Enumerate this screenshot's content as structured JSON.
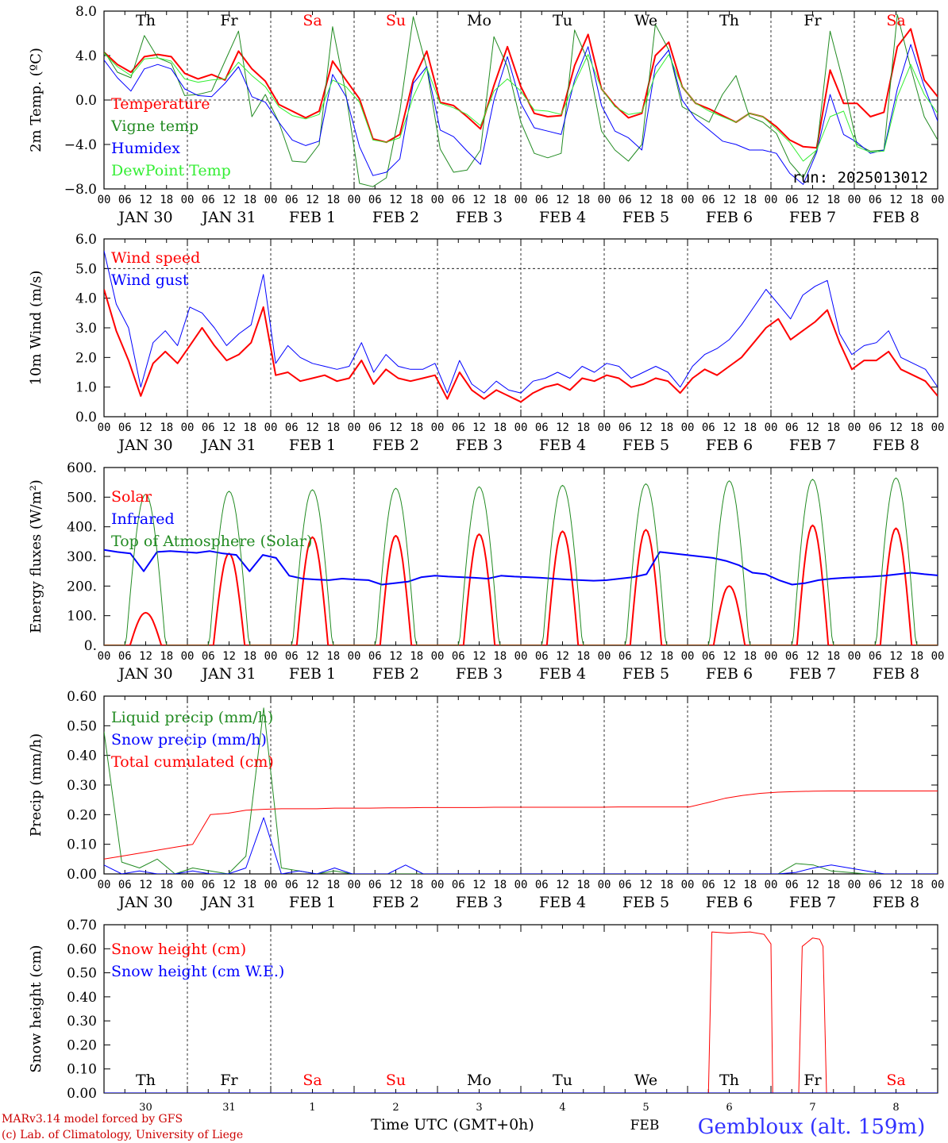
{
  "chart_data": [
    {
      "type": "line",
      "ylabel": "2m Temp. (ºC)",
      "ylim": [
        -8,
        8
      ],
      "ticks": [
        "8.0",
        "4.0",
        "0.0",
        "−4.0",
        "−8.0"
      ],
      "tick_values": [
        8,
        4,
        0,
        -4,
        -8
      ],
      "dashed_y": [
        0
      ],
      "day_labels": [
        "Th",
        "Fr",
        "Sa",
        "Su",
        "Mo",
        "Tu",
        "We",
        "Th",
        "Fr",
        "Sa"
      ],
      "run_label": "run: 2025013012",
      "series": [
        {
          "name": "Temperature",
          "color": "#ff0000",
          "width": 2,
          "values": [
            4.3,
            3.2,
            2.5,
            3.9,
            4.1,
            3.9,
            2.4,
            1.9,
            2.3,
            1.8,
            4.4,
            2.8,
            1.7,
            -0.4,
            -1.0,
            -1.6,
            -1.0,
            3.5,
            1.8,
            0.1,
            -3.5,
            -3.8,
            -3.1,
            1.8,
            4.4,
            -0.2,
            -0.5,
            -1.5,
            -2.6,
            1.3,
            4.8,
            1.2,
            -1.2,
            -1.5,
            -1.4,
            3.1,
            5.9,
            1.0,
            -0.5,
            -1.6,
            -1.2,
            4.0,
            5.2,
            1.2,
            -0.3,
            -0.8,
            -1.4,
            -2.0,
            -1.2,
            -1.5,
            -2.4,
            -3.6,
            -4.2,
            -4.3,
            2.7,
            -0.3,
            -0.3,
            -1.5,
            -1.1,
            4.8,
            6.4,
            1.8,
            0.3
          ]
        },
        {
          "name": "Vigne temp",
          "color": "#228b22",
          "width": 1,
          "values": [
            4.4,
            2.5,
            2.0,
            5.8,
            3.8,
            3.3,
            0.4,
            0.5,
            0.8,
            3.5,
            6.2,
            -1.5,
            0.5,
            -2.0,
            -5.5,
            -5.6,
            -4.0,
            6.6,
            0.5,
            -7.5,
            -7.8,
            -7.0,
            -1.0,
            7.5,
            2.9,
            -4.4,
            -6.5,
            -6.3,
            -4.5,
            5.7,
            3.0,
            -2.0,
            -4.8,
            -5.2,
            -4.8,
            6.3,
            3.5,
            -2.8,
            -4.5,
            -5.5,
            -4.0,
            6.8,
            4.5,
            -0.6,
            -1.3,
            -2.0,
            0.5,
            2.2,
            -1.5,
            -2.0,
            -3.0,
            -5.6,
            -7.0,
            -4.5,
            6.2,
            1.5,
            -4.0,
            -4.6,
            -4.5,
            7.7,
            2.9,
            -1.5,
            -3.6
          ]
        },
        {
          "name": "Humidex",
          "color": "#0000ff",
          "width": 1,
          "values": [
            3.6,
            2.0,
            0.8,
            2.8,
            3.2,
            2.8,
            1.0,
            0.4,
            0.3,
            1.5,
            3.0,
            0.3,
            -0.2,
            -2.0,
            -3.6,
            -4.1,
            -3.7,
            2.3,
            0.3,
            -4.2,
            -6.8,
            -6.5,
            -5.3,
            1.5,
            3.0,
            -2.7,
            -3.3,
            -4.6,
            -5.8,
            0.0,
            3.9,
            -0.3,
            -2.5,
            -2.8,
            -3.1,
            1.8,
            4.8,
            -0.5,
            -2.8,
            -3.4,
            -4.5,
            3.0,
            4.5,
            0.0,
            -1.7,
            -2.7,
            -3.7,
            -4.0,
            -4.5,
            -4.5,
            -4.8,
            -6.6,
            -7.6,
            -4.7,
            0.5,
            -3.1,
            -3.8,
            -4.8,
            -4.5,
            1.0,
            5.0,
            1.2,
            -1.9
          ]
        },
        {
          "name": "DewPoint Temp",
          "color": "#33ee33",
          "width": 1,
          "values": [
            4.2,
            3.0,
            2.2,
            3.7,
            3.8,
            3.5,
            1.9,
            1.6,
            1.8,
            1.9,
            3.4,
            2.2,
            1.2,
            -0.6,
            -1.4,
            -1.7,
            -1.3,
            1.8,
            1.2,
            -0.2,
            -3.6,
            -3.8,
            -3.4,
            0.3,
            2.9,
            -0.3,
            -0.7,
            -1.3,
            -2.3,
            0.8,
            1.9,
            0.8,
            -0.9,
            -1.0,
            -1.3,
            1.5,
            4.1,
            1.0,
            -0.6,
            -1.3,
            -1.1,
            2.3,
            4.1,
            1.2,
            -0.3,
            -1.0,
            -1.5,
            -2.0,
            -1.2,
            -1.5,
            -2.6,
            -3.8,
            -5.5,
            -4.5,
            -1.5,
            -1.0,
            -4.2,
            -4.7,
            -4.6,
            0.3,
            3.2,
            0.5,
            -1.2
          ]
        }
      ]
    },
    {
      "type": "line",
      "ylabel": "10m Wind (m/s)",
      "ylim": [
        0,
        6
      ],
      "ticks": [
        "6.0",
        "5.0",
        "4.0",
        "3.0",
        "2.0",
        "1.0",
        "0.0"
      ],
      "tick_values": [
        6,
        5,
        4,
        3,
        2,
        1,
        0
      ],
      "dashed_y": [
        5
      ],
      "series": [
        {
          "name": "Wind speed",
          "color": "#ff0000",
          "width": 2,
          "values": [
            4.3,
            2.9,
            1.9,
            0.7,
            1.8,
            2.2,
            1.8,
            2.4,
            3.0,
            2.4,
            1.9,
            2.1,
            2.5,
            3.7,
            1.4,
            1.5,
            1.2,
            1.3,
            1.4,
            1.2,
            1.3,
            1.9,
            1.1,
            1.6,
            1.3,
            1.2,
            1.3,
            1.4,
            0.6,
            1.5,
            0.9,
            0.6,
            0.9,
            0.7,
            0.5,
            0.8,
            1.0,
            1.1,
            0.9,
            1.3,
            1.2,
            1.4,
            1.3,
            1.0,
            1.1,
            1.3,
            1.2,
            0.8,
            1.3,
            1.6,
            1.4,
            1.7,
            2.0,
            2.5,
            3.0,
            3.3,
            2.6,
            2.9,
            3.2,
            3.6,
            2.5,
            1.6,
            1.9,
            1.9,
            2.2,
            1.6,
            1.4,
            1.2,
            0.7
          ]
        },
        {
          "name": "Wind gust",
          "color": "#0000ff",
          "width": 1,
          "values": [
            5.6,
            3.8,
            3.0,
            1.0,
            2.5,
            2.9,
            2.4,
            3.7,
            3.5,
            3.0,
            2.4,
            2.8,
            3.1,
            4.8,
            1.8,
            2.4,
            2.0,
            1.8,
            1.7,
            1.6,
            1.7,
            2.5,
            1.5,
            2.1,
            1.7,
            1.6,
            1.6,
            1.8,
            0.8,
            1.9,
            1.1,
            0.8,
            1.2,
            0.9,
            0.8,
            1.2,
            1.3,
            1.5,
            1.3,
            1.7,
            1.5,
            1.8,
            1.7,
            1.3,
            1.5,
            1.7,
            1.5,
            1.0,
            1.7,
            2.1,
            2.3,
            2.6,
            3.1,
            3.7,
            4.3,
            3.8,
            3.3,
            4.1,
            4.4,
            4.6,
            2.8,
            2.1,
            2.4,
            2.5,
            2.9,
            2.0,
            1.8,
            1.6,
            1.0
          ]
        }
      ]
    },
    {
      "type": "line",
      "ylabel": "Energy fluxes (W/m²)",
      "ylim": [
        0,
        600
      ],
      "ticks": [
        "600.",
        "500.",
        "400.",
        "300.",
        "200.",
        "100.",
        "0."
      ],
      "tick_values": [
        600,
        500,
        400,
        300,
        200,
        100,
        0
      ],
      "dashed_y": [],
      "series": [
        {
          "name": "Solar",
          "color": "#ff0000",
          "width": 2,
          "peaks": [
            110,
            310,
            365,
            370,
            375,
            385,
            390,
            200,
            405,
            395
          ]
        },
        {
          "name": "Infrared",
          "color": "#0000ff",
          "width": 2,
          "values": [
            322,
            315,
            310,
            250,
            315,
            318,
            315,
            312,
            318,
            310,
            305,
            250,
            305,
            295,
            235,
            225,
            222,
            220,
            225,
            222,
            220,
            205,
            210,
            215,
            230,
            235,
            232,
            230,
            228,
            225,
            235,
            232,
            230,
            228,
            225,
            222,
            220,
            218,
            220,
            225,
            230,
            240,
            315,
            310,
            305,
            300,
            295,
            285,
            270,
            245,
            240,
            220,
            205,
            210,
            220,
            225,
            228,
            230,
            232,
            235,
            240,
            245,
            240,
            236
          ]
        },
        {
          "name": "Top of Atmosphere (Solar)",
          "color": "#228b22",
          "width": 1,
          "peaks": [
            510,
            520,
            525,
            530,
            535,
            540,
            545,
            555,
            560,
            565
          ]
        }
      ]
    },
    {
      "type": "line",
      "ylabel": "Precip (mm/h)",
      "ylim": [
        0,
        0.6
      ],
      "ticks": [
        "0.60",
        "0.50",
        "0.40",
        "0.30",
        "0.20",
        "0.10",
        "0.00"
      ],
      "tick_values": [
        0.6,
        0.5,
        0.4,
        0.3,
        0.2,
        0.1,
        0
      ],
      "dashed_y": [],
      "series": [
        {
          "name": "Liquid precip (mm/h)",
          "color": "#228b22",
          "width": 1,
          "values": [
            0.48,
            0.04,
            0.02,
            0.05,
            0.0,
            0.02,
            0.01,
            0.0,
            0.06,
            0.56,
            0.02,
            0.01,
            0.0,
            0.01,
            0.0,
            0.0,
            0.0,
            0.0,
            0.0,
            0.0,
            0.0,
            0.0,
            0.0,
            0.0,
            0.0,
            0.0,
            0.0,
            0.0,
            0.0,
            0.0,
            0.0,
            0.0,
            0.0,
            0.0,
            0.0,
            0.0,
            0.0,
            0.0,
            0.0,
            0.035,
            0.03,
            0.01,
            0.005,
            0.0,
            0.0,
            0.0,
            0.0,
            0.0
          ]
        },
        {
          "name": "Snow precip (mm/h)",
          "color": "#0000ff",
          "width": 1,
          "values": [
            0.03,
            0.0,
            0.01,
            0.0,
            0.0,
            0.01,
            0.0,
            0.0,
            0.02,
            0.19,
            0.0,
            0.01,
            0.0,
            0.02,
            0.0,
            0.0,
            0.0,
            0.03,
            0.0,
            0.0,
            0.0,
            0.0,
            0.0,
            0.0,
            0.0,
            0.0,
            0.0,
            0.0,
            0.0,
            0.0,
            0.0,
            0.0,
            0.0,
            0.0,
            0.0,
            0.0,
            0.0,
            0.0,
            0.0,
            0.005,
            0.02,
            0.03,
            0.02,
            0.01,
            0.0,
            0.0,
            0.0,
            0.0
          ]
        },
        {
          "name": "Total cumulated (cm)",
          "color": "#ff0000",
          "width": 1,
          "values": [
            0.05,
            0.06,
            0.07,
            0.08,
            0.09,
            0.1,
            0.2,
            0.205,
            0.215,
            0.218,
            0.22,
            0.22,
            0.22,
            0.222,
            0.222,
            0.222,
            0.223,
            0.223,
            0.224,
            0.224,
            0.224,
            0.224,
            0.225,
            0.225,
            0.225,
            0.225,
            0.225,
            0.225,
            0.225,
            0.226,
            0.226,
            0.226,
            0.226,
            0.226,
            0.24,
            0.255,
            0.265,
            0.272,
            0.276,
            0.278,
            0.279,
            0.28,
            0.28,
            0.28,
            0.28,
            0.28,
            0.28,
            0.28
          ]
        }
      ]
    },
    {
      "type": "line",
      "ylabel": "Snow height (cm)",
      "ylim": [
        0,
        0.7
      ],
      "ticks": [
        "0.70",
        "0.60",
        "0.50",
        "0.40",
        "0.30",
        "0.20",
        "0.10",
        "0.00"
      ],
      "tick_values": [
        0.7,
        0.6,
        0.5,
        0.4,
        0.3,
        0.2,
        0.1,
        0
      ],
      "dashed_y": [],
      "day_labels": [
        "Th",
        "Fr",
        "Sa",
        "Su",
        "Mo",
        "Tu",
        "We",
        "Th",
        "Fr",
        "Sa"
      ],
      "date_labels": [
        "30",
        "31",
        "1",
        "2",
        "3",
        "4",
        "5",
        "6",
        "7",
        "8"
      ],
      "series": [
        {
          "name": "Snow height (cm)",
          "color": "#ff0000",
          "width": 1,
          "points": [
            [
              0,
              0
            ],
            [
              174,
              0
            ],
            [
              175,
              0.67
            ],
            [
              180,
              0.665
            ],
            [
              186,
              0.67
            ],
            [
              190,
              0.66
            ],
            [
              192,
              0.62
            ],
            [
              192.5,
              0
            ],
            [
              200,
              0
            ],
            [
              201,
              0.61
            ],
            [
              204,
              0.645
            ],
            [
              206,
              0.64
            ],
            [
              207,
              0.61
            ],
            [
              208,
              0
            ],
            [
              240,
              0
            ]
          ]
        },
        {
          "name": "Snow height (cm W.E.)",
          "color": "#0000ff",
          "width": 1,
          "points": [
            [
              0,
              0
            ],
            [
              240,
              0
            ]
          ]
        }
      ]
    }
  ],
  "x_axis": {
    "hour_ticks": [
      "00",
      "06",
      "12",
      "18"
    ],
    "end_tick": "00",
    "dates": [
      "JAN 30",
      "JAN 31",
      "FEB  1",
      "FEB  2",
      "FEB  3",
      "FEB  4",
      "FEB  5",
      "FEB  6",
      "FEB  7",
      "FEB  8"
    ],
    "title": "Time UTC (GMT+0h)",
    "month": "FEB"
  },
  "colors": {
    "weekend": "#ff0000",
    "weekday": "#000000",
    "station": "#3333ff",
    "credit": "#cc0000"
  },
  "footer": {
    "credit_line1": "MARv3.14 model forced by GFS",
    "credit_line2": "(c) Lab. of Climatology, University of Liege",
    "station": "Gembloux (alt. 159m)"
  }
}
